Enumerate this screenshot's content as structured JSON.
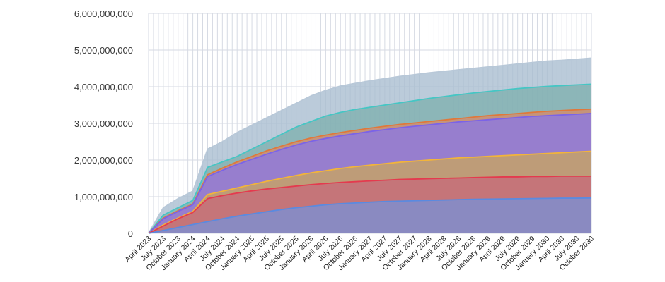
{
  "chart_data": {
    "type": "area",
    "stacked": false,
    "grid": true,
    "legend": "none",
    "title": "",
    "xlabel": "",
    "ylabel": "",
    "ylim": [
      0,
      6000000000
    ],
    "y_ticks": [
      {
        "value": 0,
        "label": "0"
      },
      {
        "value": 1000000000,
        "label": "1,000,000,000"
      },
      {
        "value": 2000000000,
        "label": "2,000,000,000"
      },
      {
        "value": 3000000000,
        "label": "3,000,000,000"
      },
      {
        "value": 4000000000,
        "label": "4,000,000,000"
      },
      {
        "value": 5000000000,
        "label": "5,000,000,000"
      },
      {
        "value": 6000000000,
        "label": "6,000,000,000"
      }
    ],
    "x": [
      "April 2023",
      "July 2023",
      "October 2023",
      "January 2024",
      "April 2024",
      "July 2024",
      "October 2024",
      "January 2025",
      "April 2025",
      "July 2025",
      "October 2025",
      "January 2026",
      "April 2026",
      "July 2026",
      "October 2026",
      "January 2027",
      "April 2027",
      "July 2027",
      "October 2027",
      "January 2028",
      "April 2028",
      "July 2028",
      "October 2028",
      "January 2029",
      "April 2029",
      "July 2029",
      "October 2029",
      "January 2030",
      "April 2030",
      "July 2030",
      "October 2030"
    ],
    "series": [
      {
        "color": "#7e9ab8",
        "fill": "#a8bccf",
        "line": "#b8c8d8",
        "values": [
          0,
          700000000,
          950000000,
          1150000000,
          2300000000,
          2500000000,
          2750000000,
          2950000000,
          3150000000,
          3350000000,
          3550000000,
          3750000000,
          3900000000,
          4020000000,
          4090000000,
          4160000000,
          4220000000,
          4280000000,
          4330000000,
          4380000000,
          4420000000,
          4460000000,
          4500000000,
          4540000000,
          4580000000,
          4620000000,
          4660000000,
          4700000000,
          4720000000,
          4750000000,
          4780000000
        ]
      },
      {
        "color": "#3fbfbf",
        "fill": "#7fb0ae",
        "line": "#45c6c4",
        "values": [
          0,
          500000000,
          700000000,
          900000000,
          1800000000,
          1950000000,
          2100000000,
          2300000000,
          2500000000,
          2700000000,
          2900000000,
          3050000000,
          3200000000,
          3300000000,
          3380000000,
          3440000000,
          3500000000,
          3560000000,
          3620000000,
          3680000000,
          3730000000,
          3780000000,
          3830000000,
          3870000000,
          3910000000,
          3950000000,
          3980000000,
          4010000000,
          4030000000,
          4050000000,
          4070000000
        ]
      },
      {
        "color": "#e07a40",
        "fill": "#d58a6a",
        "line": "#e0783a",
        "values": [
          0,
          420000000,
          620000000,
          800000000,
          1600000000,
          1780000000,
          1950000000,
          2100000000,
          2250000000,
          2380000000,
          2500000000,
          2600000000,
          2680000000,
          2750000000,
          2810000000,
          2870000000,
          2920000000,
          2970000000,
          3010000000,
          3050000000,
          3090000000,
          3130000000,
          3170000000,
          3210000000,
          3240000000,
          3270000000,
          3300000000,
          3330000000,
          3350000000,
          3370000000,
          3390000000
        ]
      },
      {
        "color": "#6f5fe0",
        "fill": "#8a78e6",
        "line": "#7b63e8",
        "values": [
          0,
          400000000,
          600000000,
          780000000,
          1550000000,
          1720000000,
          1880000000,
          2020000000,
          2160000000,
          2290000000,
          2410000000,
          2510000000,
          2590000000,
          2660000000,
          2720000000,
          2780000000,
          2830000000,
          2880000000,
          2920000000,
          2960000000,
          3000000000,
          3040000000,
          3070000000,
          3100000000,
          3130000000,
          3160000000,
          3190000000,
          3210000000,
          3230000000,
          3250000000,
          3270000000
        ]
      },
      {
        "color": "#f0b030",
        "fill": "#c9a460",
        "line": "#f2b43a",
        "values": [
          0,
          230000000,
          420000000,
          600000000,
          1060000000,
          1150000000,
          1240000000,
          1330000000,
          1420000000,
          1500000000,
          1580000000,
          1650000000,
          1710000000,
          1770000000,
          1820000000,
          1860000000,
          1900000000,
          1940000000,
          1970000000,
          2000000000,
          2030000000,
          2060000000,
          2080000000,
          2100000000,
          2120000000,
          2140000000,
          2160000000,
          2180000000,
          2200000000,
          2220000000,
          2240000000
        ]
      },
      {
        "color": "#e23a4a",
        "fill": "#c66a7a",
        "line": "#e43a4e",
        "values": [
          0,
          200000000,
          400000000,
          570000000,
          950000000,
          1030000000,
          1100000000,
          1160000000,
          1210000000,
          1250000000,
          1290000000,
          1330000000,
          1360000000,
          1390000000,
          1410000000,
          1430000000,
          1450000000,
          1470000000,
          1480000000,
          1490000000,
          1500000000,
          1510000000,
          1520000000,
          1530000000,
          1540000000,
          1540000000,
          1550000000,
          1550000000,
          1560000000,
          1560000000,
          1560000000
        ]
      },
      {
        "color": "#4a7fe0",
        "fill": "#7a8fd6",
        "line": "#5a8ae0",
        "values": [
          0,
          80000000,
          160000000,
          240000000,
          320000000,
          400000000,
          470000000,
          530000000,
          590000000,
          650000000,
          700000000,
          740000000,
          780000000,
          810000000,
          830000000,
          850000000,
          870000000,
          880000000,
          890000000,
          900000000,
          910000000,
          920000000,
          930000000,
          935000000,
          940000000,
          945000000,
          950000000,
          955000000,
          960000000,
          960000000,
          965000000
        ]
      }
    ]
  }
}
